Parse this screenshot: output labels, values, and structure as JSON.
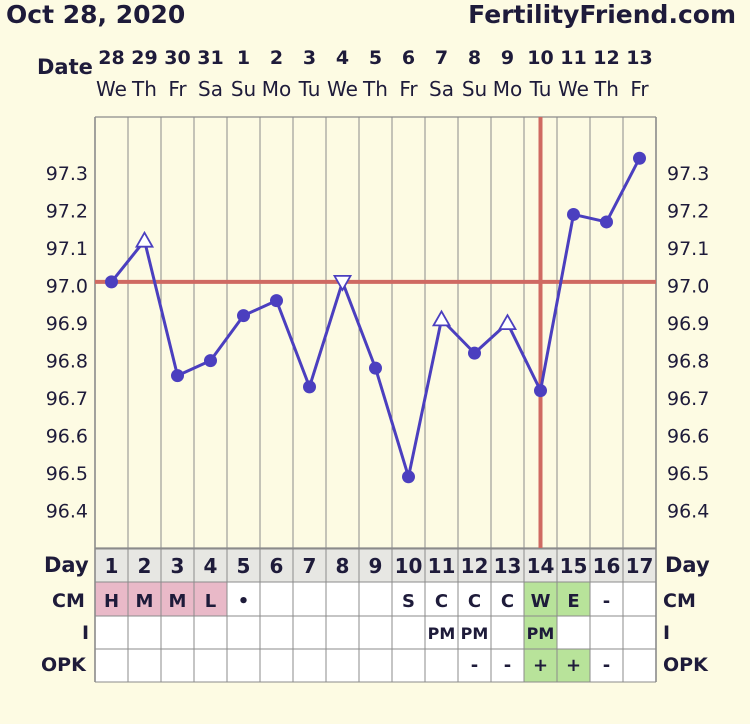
{
  "header": {
    "date": "Oct 28, 2020",
    "site": "FertilityFriend.com"
  },
  "labels": {
    "date_row": "Date",
    "day_row": "Day",
    "cm_row": "CM",
    "i_row": "I",
    "opk_row": "OPK"
  },
  "colors": {
    "line": "#4b3fbf",
    "coverline": "#cf6a62",
    "grid": "#8b8b8b",
    "cm_pink": "#e9b9c8",
    "fertile_green": "#b8e39a"
  },
  "chart_data": {
    "type": "line",
    "ylim": [
      96.3,
      97.45
    ],
    "yticks": [
      96.4,
      96.5,
      96.6,
      96.7,
      96.8,
      96.9,
      97.0,
      97.1,
      97.2,
      97.3
    ],
    "ytick_labels": [
      "96.4",
      "96.5",
      "96.6",
      "96.7",
      "96.8",
      "96.9",
      "97.0",
      "97.1",
      "97.2",
      "97.3"
    ],
    "dates": [
      "28",
      "29",
      "30",
      "31",
      "1",
      "2",
      "3",
      "4",
      "5",
      "6",
      "7",
      "8",
      "9",
      "10",
      "11",
      "12",
      "13"
    ],
    "weekdays": [
      "We",
      "Th",
      "Fr",
      "Sa",
      "Su",
      "Mo",
      "Tu",
      "We",
      "Th",
      "Fr",
      "Sa",
      "Su",
      "Mo",
      "Tu",
      "We",
      "Th",
      "Fr"
    ],
    "days": [
      "1",
      "2",
      "3",
      "4",
      "5",
      "6",
      "7",
      "8",
      "9",
      "10",
      "11",
      "12",
      "13",
      "14",
      "15",
      "16",
      "17"
    ],
    "temperatures": [
      97.01,
      97.12,
      96.76,
      96.8,
      96.92,
      96.96,
      96.73,
      97.01,
      96.78,
      96.49,
      96.91,
      96.82,
      96.9,
      96.72,
      97.19,
      97.17,
      97.34
    ],
    "markers": [
      "circle",
      "triangle-up",
      "circle",
      "circle",
      "circle",
      "circle",
      "circle",
      "triangle-down",
      "circle",
      "circle",
      "triangle-up",
      "circle",
      "triangle-up",
      "circle",
      "circle",
      "circle",
      "circle"
    ],
    "coverline": 97.01,
    "ovulation_day": 14
  },
  "cm": [
    "H",
    "M",
    "M",
    "L",
    "•",
    "",
    "",
    "",
    "",
    "S",
    "C",
    "C",
    "C",
    "W",
    "E",
    "-",
    ""
  ],
  "cm_colors": [
    "pink",
    "pink",
    "pink",
    "pink",
    "",
    "",
    "",
    "",
    "",
    "",
    "",
    "",
    "",
    "green",
    "green",
    "",
    ""
  ],
  "intercourse": [
    "",
    "",
    "",
    "",
    "",
    "",
    "",
    "",
    "",
    "",
    "PM",
    "PM",
    "",
    "PM",
    "",
    "",
    ""
  ],
  "opk": [
    "",
    "",
    "",
    "",
    "",
    "",
    "",
    "",
    "",
    "",
    "",
    "-",
    "-",
    "+",
    "+",
    "-",
    ""
  ],
  "opk_colors": [
    "",
    "",
    "",
    "",
    "",
    "",
    "",
    "",
    "",
    "",
    "",
    "",
    "",
    "green",
    "green",
    "",
    ""
  ]
}
